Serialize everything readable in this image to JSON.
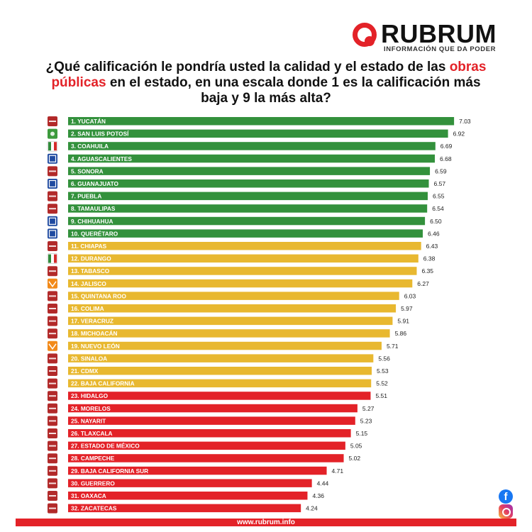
{
  "brand": {
    "name": "RUBRUM",
    "tagline": "INFORMACIÓN QUE DA PODER",
    "color": "#e32228"
  },
  "title": {
    "part1": "¿Qué calificación le pondría usted la calidad y el estado de las",
    "highlight": "obras públicas",
    "part2": "en el estado, en una escala donde 1 es la calificación más baja y 9 la más alta?"
  },
  "footer": {
    "url": "www.rubrum.info"
  },
  "social": {
    "facebook_icon": "facebook-icon",
    "instagram_icon": "instagram-icon"
  },
  "colors": {
    "green": "#33913c",
    "yellow": "#e8b830",
    "red": "#e32228"
  },
  "chart_data": {
    "type": "bar",
    "orientation": "horizontal",
    "title": "",
    "xlabel": "",
    "ylabel": "",
    "categories": [
      "1. YUCATÁN",
      "2. SAN LUIS POTOSÍ",
      "3. COAHUILA",
      "4. AGUASCALIENTES",
      "5. SONORA",
      "6. GUANAJUATO",
      "7. PUEBLA",
      "8. TAMAULIPAS",
      "9. CHIHUAHUA",
      "10. QUERÉTARO",
      "11. CHIAPAS",
      "12. DURANGO",
      "13. TABASCO",
      "14. JALISCO",
      "15. QUINTANA ROO",
      "16. COLIMA",
      "17. VERACRUZ",
      "18. MICHOACÁN",
      "19. NUEVO LEÓN",
      "20. SINALOA",
      "21. CDMX",
      "22. BAJA CALIFORNIA",
      "23. HIDALGO",
      "24. MORELOS",
      "25. NAYARIT",
      "26. TLAXCALA",
      "27. ESTADO DE MÉXICO",
      "28. CAMPECHE",
      "29. BAJA CALIFORNIA SUR",
      "30. GUERRERO",
      "31. OAXACA",
      "32. ZACATECAS"
    ],
    "values": [
      7.03,
      6.92,
      6.69,
      6.68,
      6.59,
      6.57,
      6.55,
      6.54,
      6.5,
      6.46,
      6.43,
      6.38,
      6.35,
      6.27,
      6.03,
      5.97,
      5.91,
      5.86,
      5.71,
      5.56,
      5.53,
      5.52,
      5.51,
      5.27,
      5.23,
      5.15,
      5.05,
      5.02,
      4.71,
      4.44,
      4.36,
      4.24
    ],
    "value_labels": [
      "7.03",
      "6.92",
      "6.69",
      "6.68",
      "6.59",
      "6.57",
      "6.55",
      "6.54",
      "6.50",
      "6.46",
      "6.43",
      "6.38",
      "6.35",
      "6.27",
      "6.03",
      "5.97",
      "5.91",
      "5.86",
      "5.71",
      "5.56",
      "5.53",
      "5.52",
      "5.51",
      "5.27",
      "5.23",
      "5.15",
      "5.05",
      "5.02",
      "4.71",
      "4.44",
      "4.36",
      "4.24"
    ],
    "bar_groups": [
      "green",
      "green",
      "green",
      "green",
      "green",
      "green",
      "green",
      "green",
      "green",
      "green",
      "yellow",
      "yellow",
      "yellow",
      "yellow",
      "yellow",
      "yellow",
      "yellow",
      "yellow",
      "yellow",
      "yellow",
      "yellow",
      "yellow",
      "red",
      "red",
      "red",
      "red",
      "red",
      "red",
      "red",
      "red",
      "red",
      "red"
    ],
    "party_icons": [
      "morena-icon",
      "pvem-icon",
      "pri-icon",
      "pan-icon",
      "morena-icon",
      "pan-icon",
      "morena-icon",
      "morena-icon",
      "pan-icon",
      "pan-icon",
      "morena-icon",
      "pri-icon",
      "morena-icon",
      "mc-icon",
      "morena-icon",
      "morena-icon",
      "morena-icon",
      "morena-icon",
      "mc-icon",
      "morena-icon",
      "morena-icon",
      "morena-icon",
      "morena-icon",
      "morena-icon",
      "morena-icon",
      "morena-icon",
      "morena-icon",
      "morena-icon",
      "morena-icon",
      "morena-icon",
      "morena-icon",
      "morena-icon"
    ],
    "legend": "none",
    "grid": false
  }
}
